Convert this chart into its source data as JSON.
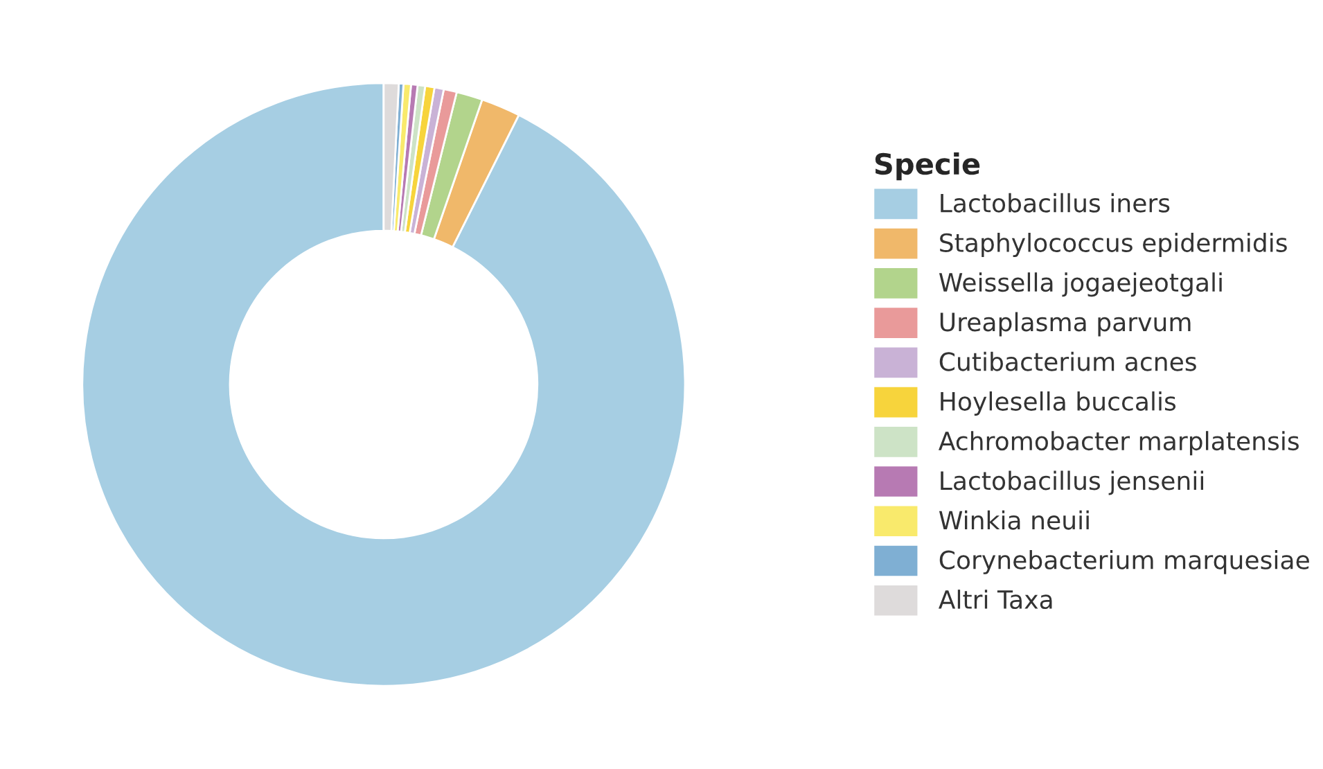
{
  "chart_data": {
    "type": "donut",
    "legend_title": "Specie",
    "legend": "right",
    "categories": [
      "Lactobacillus iners",
      "Staphylococcus epidermidis",
      "Weissella jogaejeotgali",
      "Ureaplasma parvum",
      "Cutibacterium acnes",
      "Hoylesella buccalis",
      "Achromobacter marplatensis",
      "Lactobacillus jensenii",
      "Winkia neuii",
      "Corynebacterium marquesiae",
      "Altri Taxa"
    ],
    "values": [
      92.6,
      2.1,
      1.4,
      0.7,
      0.5,
      0.5,
      0.4,
      0.35,
      0.4,
      0.25,
      0.8
    ],
    "colors": [
      "#a6cee3",
      "#f0b86a",
      "#b2d48c",
      "#e99a9a",
      "#c9b2d6",
      "#f7d43c",
      "#cde3c6",
      "#b77ab3",
      "#f9ea6c",
      "#7fafd3",
      "#dedbdb"
    ]
  }
}
